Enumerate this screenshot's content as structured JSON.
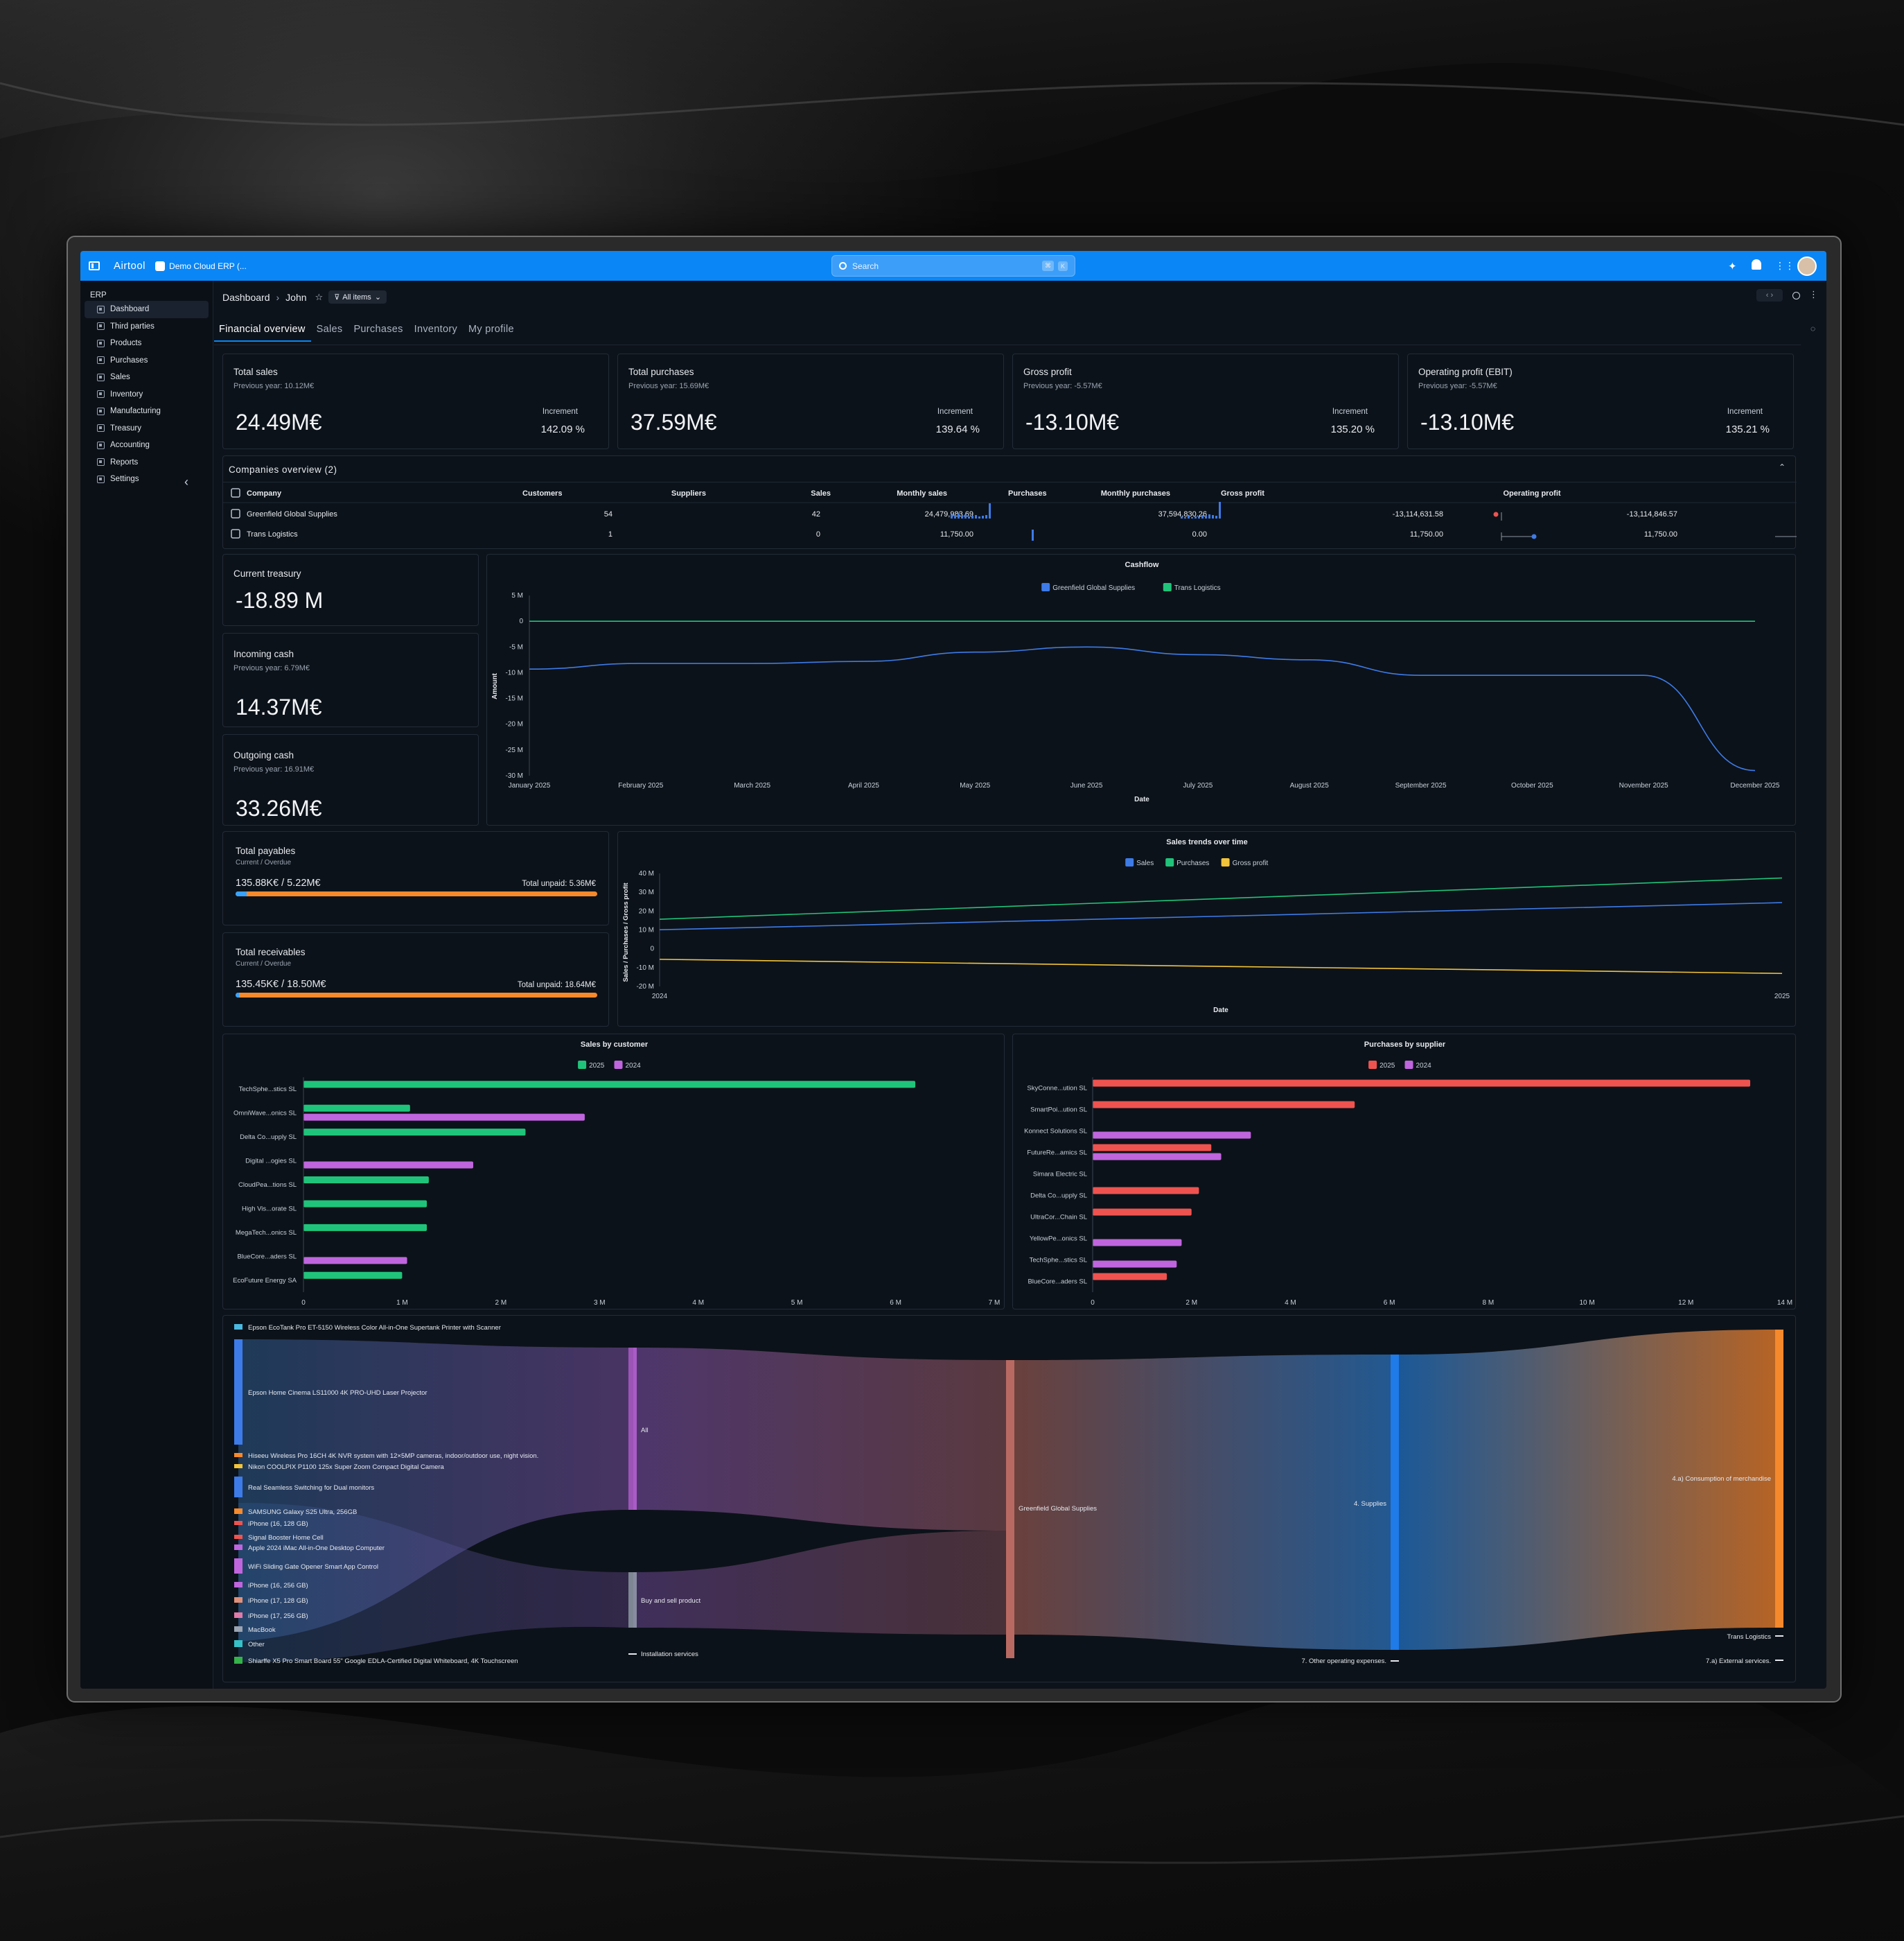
{
  "app": {
    "name": "Airtool",
    "workspace": "Demo Cloud ERP (...",
    "search_placeholder": "Search",
    "kbd1": "⌘",
    "kbd2": "K"
  },
  "sidebar": {
    "section": "ERP",
    "items": [
      {
        "label": "Dashboard"
      },
      {
        "label": "Third parties"
      },
      {
        "label": "Products"
      },
      {
        "label": "Purchases"
      },
      {
        "label": "Sales"
      },
      {
        "label": "Inventory"
      },
      {
        "label": "Manufacturing"
      },
      {
        "label": "Treasury"
      },
      {
        "label": "Accounting"
      },
      {
        "label": "Reports"
      },
      {
        "label": "Settings"
      }
    ]
  },
  "header": {
    "crumb1": "Dashboard",
    "crumb2": "John",
    "filter": "All items"
  },
  "tabs": [
    "Financial overview",
    "Sales",
    "Purchases",
    "Inventory",
    "My profile"
  ],
  "kpis": [
    {
      "title": "Total sales",
      "prev": "Previous year: 10.12M€",
      "value": "24.49M€",
      "inc_label": "Increment",
      "inc": "142.09 %"
    },
    {
      "title": "Total purchases",
      "prev": "Previous year: 15.69M€",
      "value": "37.59M€",
      "inc_label": "Increment",
      "inc": "139.64 %"
    },
    {
      "title": "Gross profit",
      "prev": "Previous year: -5.57M€",
      "value": "-13.10M€",
      "inc_label": "Increment",
      "inc": "135.20 %"
    },
    {
      "title": "Operating profit (EBIT)",
      "prev": "Previous year: -5.57M€",
      "value": "-13.10M€",
      "inc_label": "Increment",
      "inc": "135.21 %"
    }
  ],
  "companies": {
    "title": "Companies overview (2)",
    "columns": [
      "Company",
      "Customers",
      "Suppliers",
      "Sales",
      "Monthly sales",
      "Purchases",
      "Monthly purchases",
      "Gross profit",
      "Operating profit"
    ],
    "rows": [
      {
        "company": "Greenfield Global Supplies",
        "customers": "54",
        "suppliers": "42",
        "sales": "24,479,983.69",
        "purchases": "37,594,830.26",
        "gross": "-13,114,631.58",
        "operating": "-13,114,846.57"
      },
      {
        "company": "Trans Logistics",
        "customers": "1",
        "suppliers": "0",
        "sales": "11,750.00",
        "purchases": "0.00",
        "gross": "11,750.00",
        "operating": "11,750.00"
      }
    ]
  },
  "treasury": [
    {
      "title": "Current treasury",
      "prev": "",
      "value": "-18.89 M"
    },
    {
      "title": "Incoming cash",
      "prev": "Previous year: 6.79M€",
      "value": "14.37M€"
    },
    {
      "title": "Outgoing cash",
      "prev": "Previous year: 16.91M€",
      "value": "33.26M€"
    }
  ],
  "payables": {
    "title": "Total payables",
    "sub": "Current / Overdue",
    "value": "135.88K€ / 5.22M€",
    "unpaid": "Total unpaid: 5.36M€",
    "progress": 0.03
  },
  "receivables": {
    "title": "Total receivables",
    "sub": "Current / Overdue",
    "value": "135.45K€ / 18.50M€",
    "unpaid": "Total unpaid: 18.64M€",
    "progress": 0.01
  },
  "colors": {
    "accent": "#0a86f6",
    "blue": "#3d7be8",
    "green": "#1fc47a",
    "yellow": "#f3c43a",
    "red": "#ef5350",
    "purple": "#c065de",
    "orange": "#f5892c"
  },
  "chart_data": [
    {
      "type": "line",
      "title": "Cashflow",
      "xlabel": "Date",
      "ylabel": "Amount",
      "x": [
        "January 2025",
        "February 2025",
        "March 2025",
        "April 2025",
        "May 2025",
        "June 2025",
        "July 2025",
        "August 2025",
        "September 2025",
        "October 2025",
        "November 2025",
        "December 2025"
      ],
      "yticks": [
        "5 M",
        "0",
        "-5 M",
        "-10 M",
        "-15 M",
        "-20 M",
        "-25 M",
        "-30 M"
      ],
      "ylim": [
        -30,
        5
      ],
      "series": [
        {
          "name": "Greenfield Global Supplies",
          "values": [
            -9.3,
            -8.2,
            -8.2,
            -7.8,
            -6,
            -5,
            -6.5,
            -7.5,
            -10.5,
            -10.5,
            -10.5,
            -29
          ]
        },
        {
          "name": "Trans Logistics",
          "values": [
            0,
            0,
            0,
            0,
            0,
            0,
            0,
            0,
            0,
            0,
            0,
            0
          ]
        }
      ]
    },
    {
      "type": "line",
      "title": "Sales trends over time",
      "xlabel": "Date",
      "ylabel": "Sales / Purchases / Gross profit",
      "x": [
        "2024",
        "2025"
      ],
      "yticks": [
        "40 M",
        "30 M",
        "20 M",
        "10 M",
        "0",
        "-10 M",
        "-20 M"
      ],
      "ylim": [
        -20,
        40
      ],
      "series": [
        {
          "name": "Sales",
          "values": [
            10.1,
            24.5
          ]
        },
        {
          "name": "Purchases",
          "values": [
            15.7,
            37.6
          ]
        },
        {
          "name": "Gross profit",
          "values": [
            -5.6,
            -13.1
          ]
        }
      ]
    },
    {
      "type": "bar",
      "title": "Sales by customer",
      "orientation": "horizontal",
      "categories": [
        "TechSphe...stics SL",
        "OmniWave...onics SL",
        "Delta Co...upply SL",
        "Digital ...ogies SL",
        "CloudPea...tions SL",
        "High Vis...orate SL",
        "MegaTech...onics SL",
        "BlueCore...aders SL",
        "EcoFuture Energy SA"
      ],
      "xticks": [
        "0",
        "1 M",
        "2 M",
        "3 M",
        "4 M",
        "5 M",
        "6 M",
        "7 M"
      ],
      "xlim": [
        0,
        7
      ],
      "series": [
        {
          "name": "2025",
          "values": [
            6.2,
            1.08,
            2.25,
            0,
            1.27,
            1.25,
            1.25,
            0,
            1.0
          ]
        },
        {
          "name": "2024",
          "values": [
            0,
            2.85,
            0,
            1.72,
            0,
            0,
            0,
            1.05,
            0
          ]
        }
      ]
    },
    {
      "type": "bar",
      "title": "Purchases by supplier",
      "orientation": "horizontal",
      "categories": [
        "SkyConne...ution SL",
        "SmartPoi...ution SL",
        "Konnect Solutions SL",
        "FutureRe...amics SL",
        "Simara Electric SL",
        "Delta Co...upply SL",
        "UltraCor...Chain SL",
        "YellowPe...onics SL",
        "TechSphe...stics SL",
        "BlueCore...aders SL"
      ],
      "xticks": [
        "0",
        "2 M",
        "4 M",
        "6 M",
        "8 M",
        "10 M",
        "12 M",
        "14 M"
      ],
      "xlim": [
        0,
        14
      ],
      "series": [
        {
          "name": "2025",
          "values": [
            13.3,
            5.3,
            0,
            2.4,
            0,
            2.15,
            2.0,
            0,
            0,
            1.5
          ]
        },
        {
          "name": "2024",
          "values": [
            0,
            0,
            3.2,
            2.6,
            0,
            0,
            0,
            1.8,
            1.7,
            0
          ]
        }
      ]
    }
  ],
  "sankey": {
    "sources": [
      "Epson EcoTank Pro ET-5150 Wireless Color All-in-One Supertank Printer with Scanner",
      "Epson Home Cinema LS11000 4K PRO-UHD Laser Projector",
      "Hiseeu Wireless Pro 16CH 4K NVR system with 12×5MP cameras, indoor/outdoor use, night vision.",
      "Nikon COOLPIX P1100 125x Super Zoom Compact Digital Camera",
      "Real Seamless Switching for Dual monitors",
      "SAMSUNG Galaxy S25 Ultra, 256GB",
      "iPhone (16, 128 GB)",
      "Signal Booster Home Cell",
      "Apple 2024 iMac All-in-One Desktop Computer",
      "WiFi Sliding Gate Opener Smart App Control",
      "iPhone (16, 256 GB)",
      "iPhone (17, 128 GB)",
      "iPhone (17, 256 GB)",
      "MacBook",
      "Other",
      "Shiarffe X5 Pro Smart Board 55\" Google EDLA-Certified Digital Whiteboard, 4K Touchscreen"
    ],
    "mid": [
      "All",
      "Buy and sell product",
      "Installation services"
    ],
    "company": "Greenfield Global Supplies",
    "acct": [
      "4. Supplies",
      "7. Other operating expenses."
    ],
    "dest": [
      "4.a) Consumption of merchandise",
      "Trans Logistics",
      "7.a) External services."
    ]
  }
}
